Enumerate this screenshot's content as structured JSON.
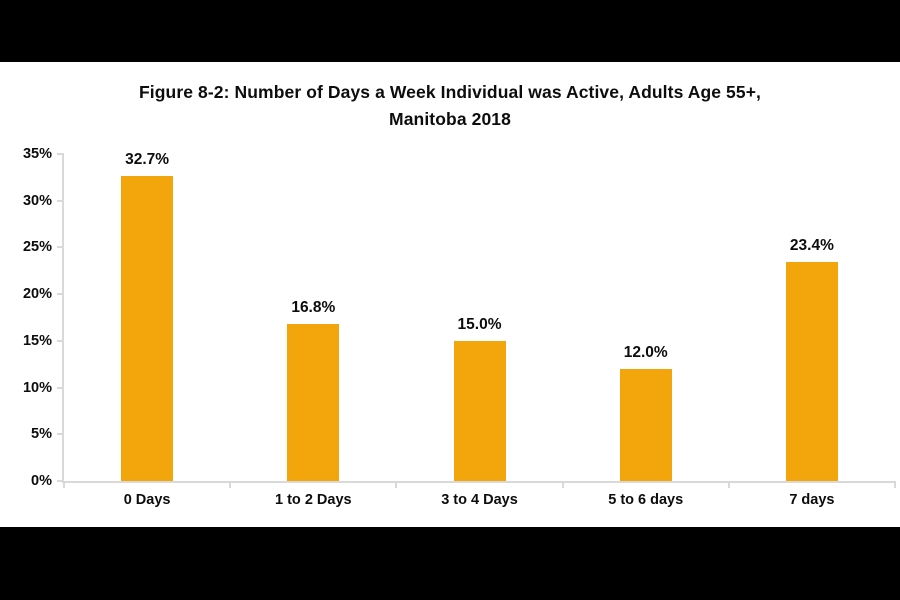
{
  "frame": {
    "background_color": "#000000",
    "chart_background_color": "#ffffff"
  },
  "chart_data": {
    "type": "bar",
    "title_line1": "Figure 8-2: Number of Days a Week Individual was Active, Adults Age 55+,",
    "title_line2": "Manitoba 2018",
    "categories": [
      "0 Days",
      "1 to 2 Days",
      "3 to 4 Days",
      "5 to 6 days",
      "7 days"
    ],
    "values": [
      32.7,
      16.8,
      15.0,
      12.0,
      23.4
    ],
    "value_labels": [
      "32.7%",
      "16.8%",
      "15.0%",
      "12.0%",
      "23.4%"
    ],
    "y_tick_values": [
      0,
      5,
      10,
      15,
      20,
      25,
      30,
      35
    ],
    "y_tick_labels": [
      "0%",
      "5%",
      "10%",
      "15%",
      "20%",
      "25%",
      "30%",
      "35%"
    ],
    "ylim": [
      0,
      35
    ],
    "xlabel": "",
    "ylabel": "",
    "grid": false,
    "legend": false,
    "bar_color": "#F2A60B",
    "axis_color": "#D9D9D9",
    "text_color": "#0D0D0D"
  }
}
